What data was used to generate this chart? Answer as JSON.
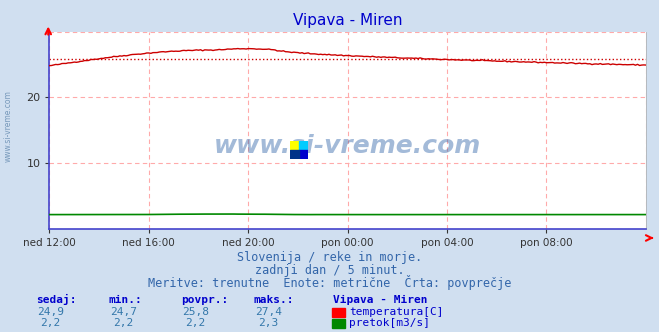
{
  "title": "Vipava - Miren",
  "title_color": "#0000cc",
  "bg_color": "#d0dff0",
  "plot_bg_color": "#ffffff",
  "grid_color": "#ffaaaa",
  "grid_style": "--",
  "border_left_color": "#4444cc",
  "border_bottom_color": "#4444cc",
  "xlabel_ticks": [
    "ned 12:00",
    "ned 16:00",
    "ned 20:00",
    "pon 00:00",
    "pon 04:00",
    "pon 08:00"
  ],
  "x_tick_positions": [
    0.0,
    0.1667,
    0.3333,
    0.5,
    0.6667,
    0.8333
  ],
  "ylim": [
    0,
    30
  ],
  "yticks": [
    10,
    20
  ],
  "temp_avg": 25.8,
  "temp_min": 24.7,
  "temp_max": 27.4,
  "temp_current": 24.9,
  "flow_avg": 2.2,
  "flow_min": 2.2,
  "flow_max": 2.3,
  "flow_current": 2.2,
  "subtitle1": "Slovenija / reke in morje.",
  "subtitle2": "zadnji dan / 5 minut.",
  "subtitle3": "Meritve: trenutne  Enote: metrične  Črta: povprečje",
  "watermark": "www.si-vreme.com",
  "watermark_color": "#3366aa",
  "line_color_temp": "#cc0000",
  "line_color_flow": "#008800",
  "avg_line_color": "#cc0000",
  "text_color": "#3366aa",
  "stat_label_color": "#0000cc",
  "stat_value_color": "#3377aa",
  "left_watermark": "www.si-vreme.com",
  "left_watermark_color": "#7799bb"
}
